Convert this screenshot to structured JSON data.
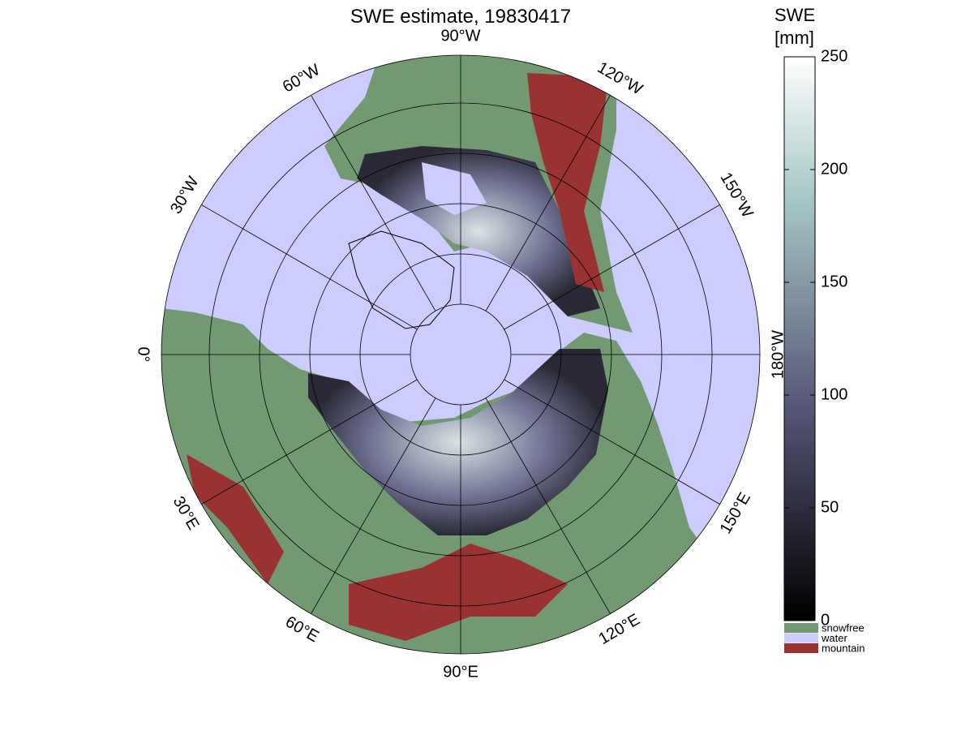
{
  "title": "SWE estimate, 19830417",
  "longitudes": [
    {
      "value": -90,
      "label": "90°W"
    },
    {
      "value": -120,
      "label": "120°W"
    },
    {
      "value": -150,
      "label": "150°W"
    },
    {
      "value": -180,
      "label": "180°W"
    },
    {
      "value": 150,
      "label": "150°E"
    },
    {
      "value": 120,
      "label": "120°E"
    },
    {
      "value": 90,
      "label": "90°E"
    },
    {
      "value": 60,
      "label": "60°E"
    },
    {
      "value": 30,
      "label": "30°E"
    },
    {
      "value": 0,
      "label": "0°"
    },
    {
      "value": -30,
      "label": "30°W"
    },
    {
      "value": -60,
      "label": "60°W"
    }
  ],
  "colorbar": {
    "label": [
      "SWE",
      "[mm]"
    ],
    "ylim": [
      0,
      250
    ],
    "yticks": [
      0,
      50,
      100,
      150,
      200,
      250
    ]
  },
  "legend": [
    {
      "name": "snowfree",
      "color": "#739973"
    },
    {
      "name": "water",
      "color": "#ccccff"
    },
    {
      "name": "mountain",
      "color": "#993333"
    }
  ]
}
